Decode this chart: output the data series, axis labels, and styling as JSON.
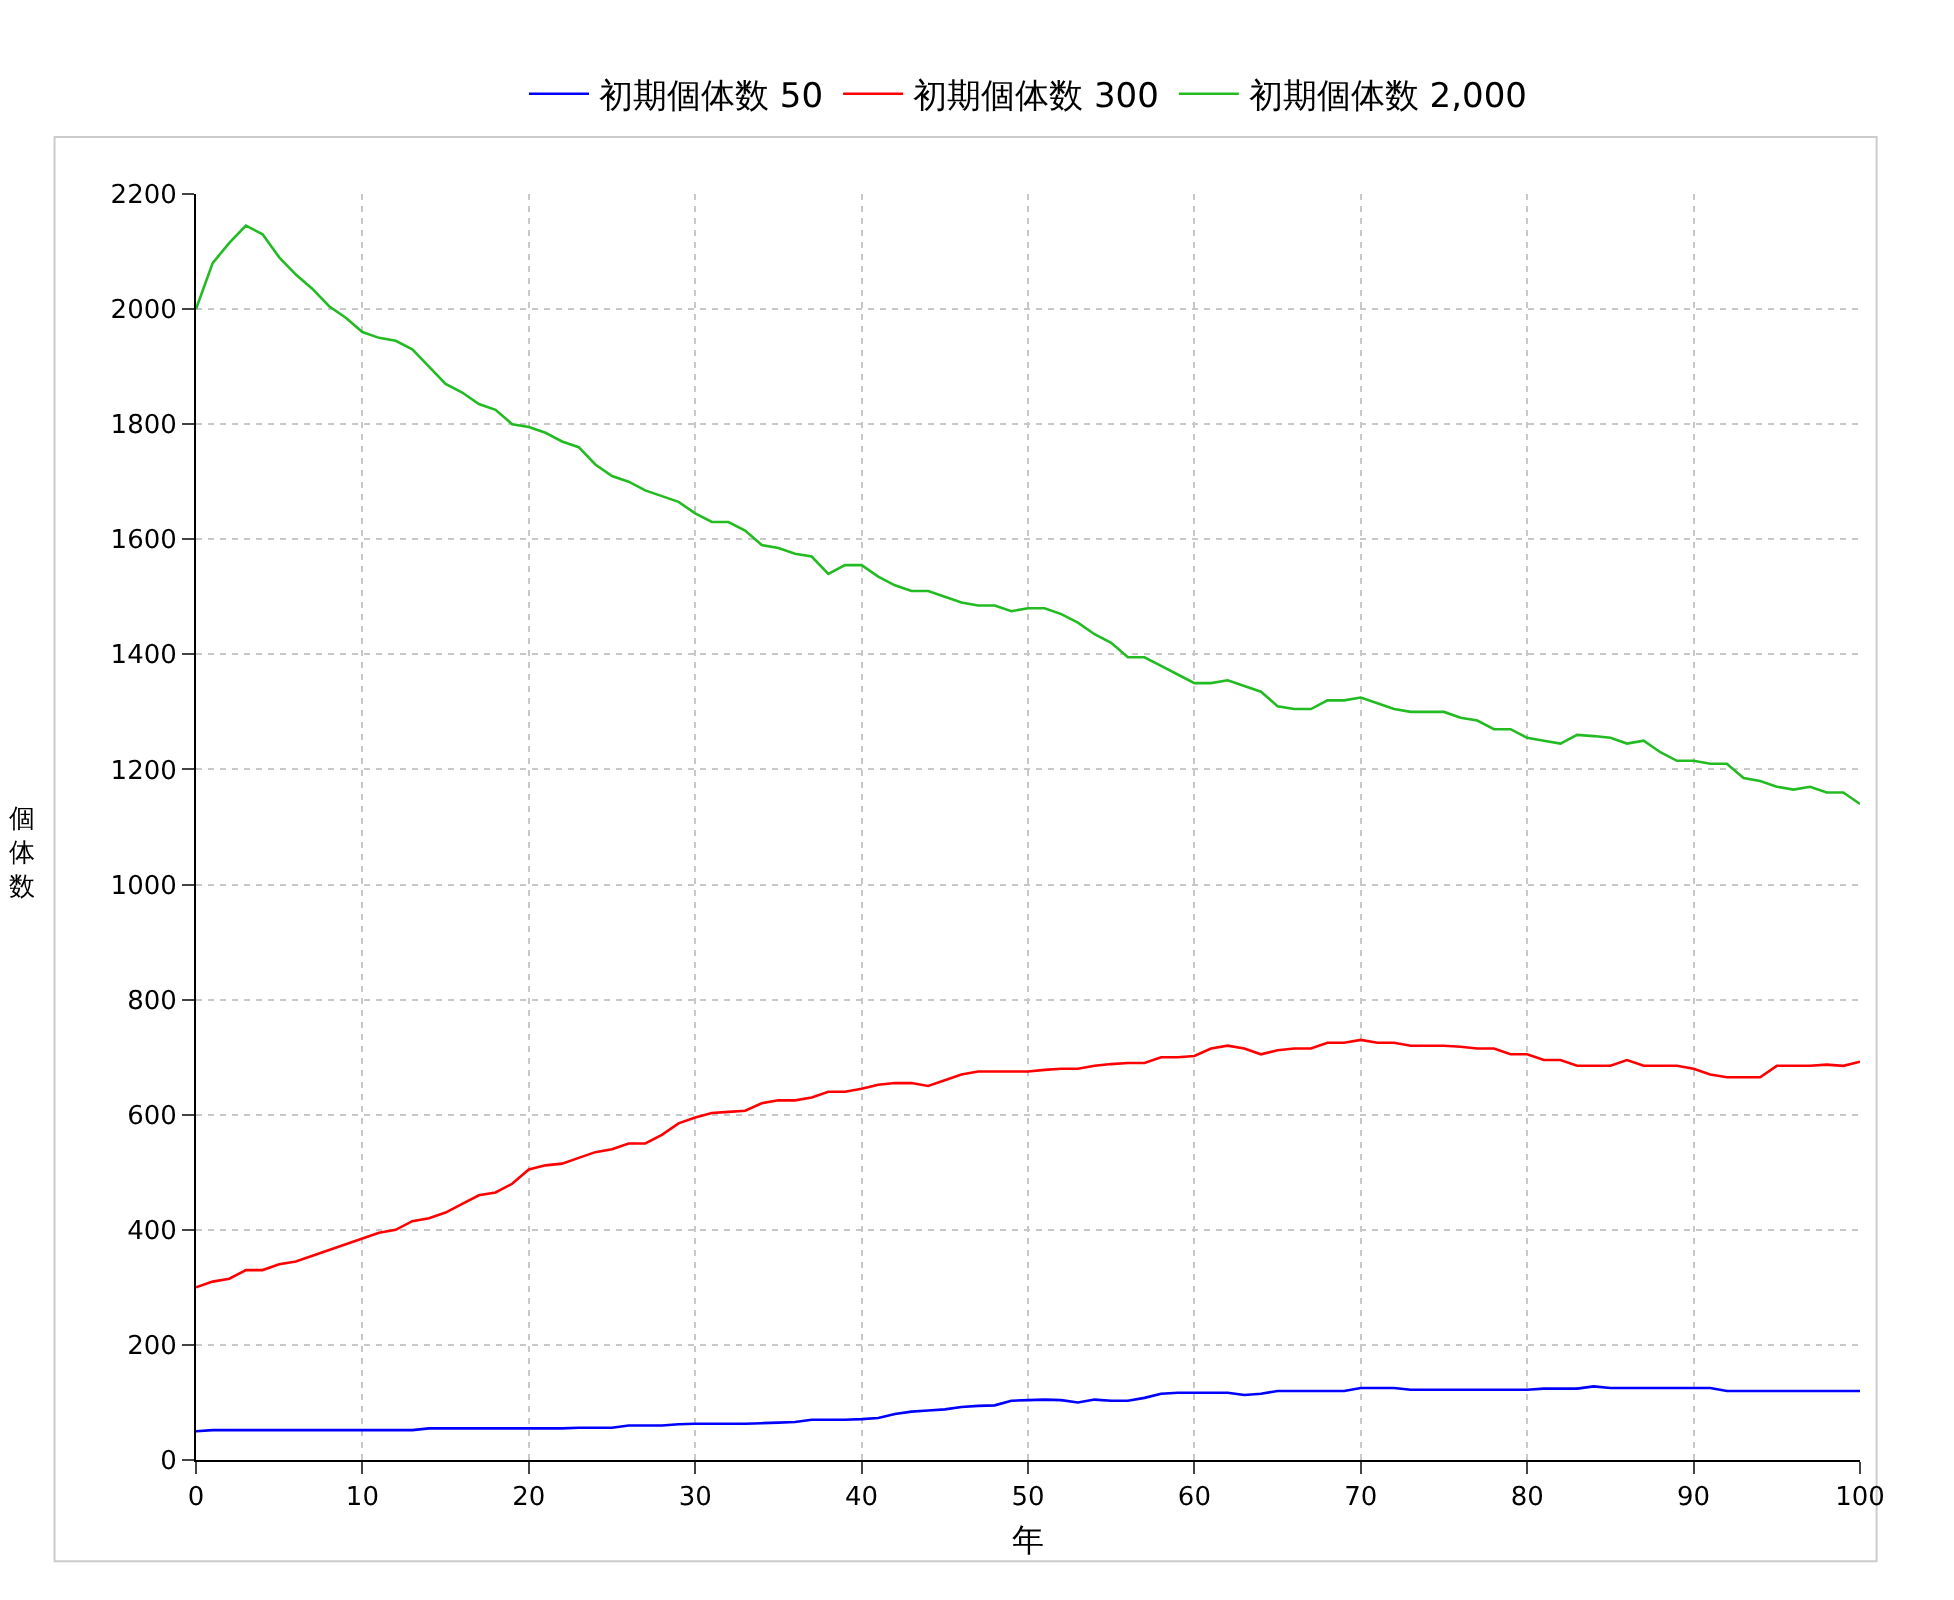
{
  "chart_data": {
    "type": "line",
    "xlabel": "年",
    "ylabel": "個体数",
    "x": [
      0,
      1,
      2,
      3,
      4,
      5,
      6,
      7,
      8,
      9,
      10,
      11,
      12,
      13,
      14,
      15,
      16,
      17,
      18,
      19,
      20,
      21,
      22,
      23,
      24,
      25,
      26,
      27,
      28,
      29,
      30,
      31,
      32,
      33,
      34,
      35,
      36,
      37,
      38,
      39,
      40,
      41,
      42,
      43,
      44,
      45,
      46,
      47,
      48,
      49,
      50,
      51,
      52,
      53,
      54,
      55,
      56,
      57,
      58,
      59,
      60,
      61,
      62,
      63,
      64,
      65,
      66,
      67,
      68,
      69,
      70,
      71,
      72,
      73,
      74,
      75,
      76,
      77,
      78,
      79,
      80,
      81,
      82,
      83,
      84,
      85,
      86,
      87,
      88,
      89,
      90,
      91,
      92,
      93,
      94,
      95,
      96,
      97,
      98,
      99,
      100
    ],
    "series": [
      {
        "name": "初期個体数 50",
        "color": "#0000ff",
        "values": [
          50,
          52,
          52,
          52,
          52,
          52,
          52,
          52,
          52,
          52,
          52,
          52,
          52,
          52,
          55,
          55,
          55,
          55,
          55,
          55,
          55,
          55,
          55,
          56,
          56,
          56,
          60,
          60,
          60,
          62,
          63,
          63,
          63,
          63,
          64,
          65,
          66,
          70,
          70,
          70,
          71,
          73,
          80,
          84,
          86,
          88,
          92,
          94,
          95,
          103,
          104,
          105,
          104,
          100,
          105,
          103,
          103,
          108,
          115,
          117,
          117,
          117,
          117,
          113,
          115,
          120,
          120,
          120,
          120,
          120,
          125,
          125,
          125,
          122,
          122,
          122,
          122,
          122,
          122,
          122,
          122,
          124,
          124,
          124,
          128,
          125,
          125,
          125,
          125,
          125,
          125,
          125,
          120,
          120,
          120,
          120,
          120,
          120,
          120,
          120,
          120
        ]
      },
      {
        "name": "初期個体数 300",
        "color": "#ff0000",
        "values": [
          300,
          310,
          315,
          330,
          330,
          340,
          345,
          355,
          365,
          375,
          385,
          395,
          400,
          415,
          420,
          430,
          445,
          460,
          465,
          480,
          505,
          512,
          515,
          525,
          535,
          540,
          550,
          550,
          565,
          585,
          595,
          603,
          605,
          607,
          620,
          625,
          625,
          630,
          640,
          640,
          645,
          652,
          655,
          655,
          650,
          660,
          670,
          675,
          675,
          675,
          675,
          678,
          680,
          680,
          685,
          688,
          690,
          690,
          700,
          700,
          702,
          715,
          720,
          715,
          705,
          712,
          715,
          715,
          725,
          725,
          730,
          725,
          725,
          720,
          720,
          720,
          718,
          715,
          715,
          705,
          705,
          695,
          695,
          685,
          685,
          685,
          695,
          685,
          685,
          685,
          680,
          670,
          665,
          665,
          665,
          685,
          685,
          685,
          687,
          685,
          692
        ]
      },
      {
        "name": "初期個体数 2,000",
        "color": "#22bb22",
        "values": [
          2000,
          2080,
          2115,
          2145,
          2130,
          2090,
          2060,
          2035,
          2005,
          1985,
          1960,
          1950,
          1945,
          1930,
          1900,
          1870,
          1855,
          1835,
          1825,
          1800,
          1795,
          1785,
          1770,
          1760,
          1730,
          1710,
          1700,
          1685,
          1675,
          1665,
          1645,
          1630,
          1630,
          1615,
          1590,
          1585,
          1575,
          1570,
          1540,
          1555,
          1555,
          1535,
          1520,
          1510,
          1510,
          1500,
          1490,
          1485,
          1485,
          1475,
          1480,
          1480,
          1470,
          1455,
          1435,
          1420,
          1395,
          1395,
          1380,
          1365,
          1350,
          1350,
          1355,
          1345,
          1335,
          1310,
          1305,
          1305,
          1320,
          1320,
          1325,
          1315,
          1305,
          1300,
          1300,
          1300,
          1290,
          1285,
          1270,
          1270,
          1255,
          1250,
          1245,
          1260,
          1258,
          1255,
          1245,
          1250,
          1230,
          1215,
          1215,
          1210,
          1210,
          1185,
          1180,
          1170,
          1165,
          1170,
          1160,
          1160,
          1140
        ]
      }
    ],
    "xlim": [
      0,
      100
    ],
    "xticks": [
      0,
      10,
      20,
      30,
      40,
      50,
      60,
      70,
      80,
      90,
      100
    ],
    "ylim": [
      0,
      2200
    ],
    "yticks": [
      0,
      200,
      400,
      600,
      800,
      1000,
      1200,
      1400,
      1600,
      1800,
      2000,
      2200
    ],
    "grid": true,
    "legend": "top",
    "marker": "none",
    "line_style": "solid"
  }
}
